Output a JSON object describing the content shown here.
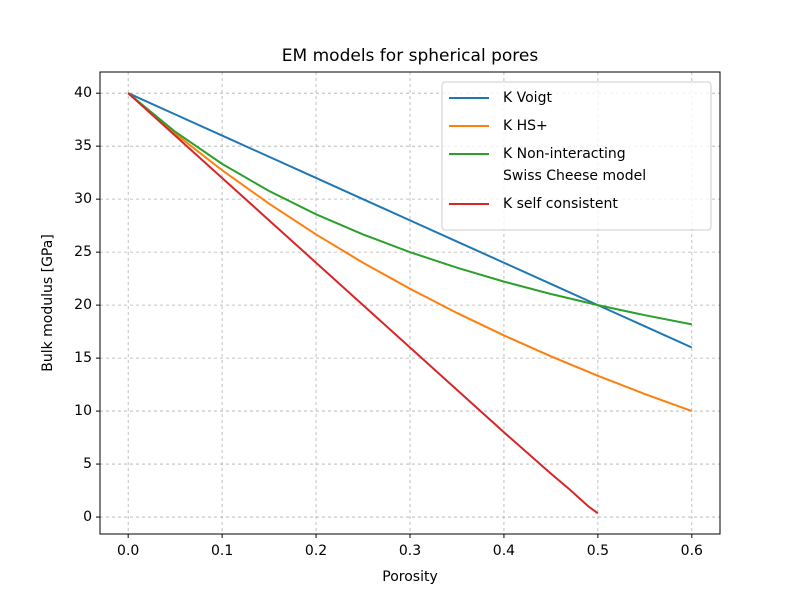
{
  "chart_data": {
    "type": "line",
    "title": "EM models for spherical pores",
    "xlabel": "Porosity",
    "ylabel": "Bulk modulus [GPa]",
    "xlim": [
      -0.03,
      0.63
    ],
    "ylim": [
      -1.6,
      42
    ],
    "xticks": [
      {
        "value": 0,
        "label": "0.0"
      },
      0.1,
      0.2,
      0.3,
      0.4,
      0.5,
      0.6
    ],
    "yticks": [
      0,
      5,
      10,
      15,
      20,
      25,
      30,
      35,
      40
    ],
    "grid": true,
    "legend": "upper right",
    "series": [
      {
        "name": "K Voigt",
        "color": "#1f77b4",
        "x": [
          0,
          0.05,
          0.1,
          0.15,
          0.2,
          0.25,
          0.3,
          0.35,
          0.4,
          0.45,
          0.5,
          0.55,
          0.6
        ],
        "values": [
          40,
          38,
          36,
          34,
          32,
          30,
          28,
          26,
          24,
          22,
          20,
          18,
          16
        ]
      },
      {
        "name": "K HS+",
        "color": "#ff7f0e",
        "x": [
          0,
          0.05,
          0.1,
          0.15,
          0.2,
          0.25,
          0.3,
          0.35,
          0.4,
          0.45,
          0.5,
          0.55,
          0.6
        ],
        "values": [
          40,
          36.19,
          32.73,
          29.57,
          26.67,
          24,
          21.54,
          19.26,
          17.14,
          15.17,
          13.33,
          11.61,
          10
        ]
      },
      {
        "name": "K Non-interacting\nSwiss Cheese model",
        "color": "#2ca02c",
        "x": [
          0,
          0.05,
          0.1,
          0.15,
          0.2,
          0.25,
          0.3,
          0.35,
          0.4,
          0.45,
          0.5,
          0.55,
          0.6
        ],
        "values": [
          40,
          36.36,
          33.33,
          30.77,
          28.57,
          26.67,
          25,
          23.53,
          22.22,
          21.05,
          20,
          19.05,
          18.18
        ]
      },
      {
        "name": "K self consistent",
        "color": "#d62728",
        "x": [
          0,
          0.05,
          0.1,
          0.15,
          0.2,
          0.25,
          0.3,
          0.35,
          0.4,
          0.45,
          0.47,
          0.49,
          0.5
        ],
        "values": [
          40,
          36,
          32,
          28,
          24,
          20,
          16,
          12,
          8,
          4.1,
          2.6,
          1,
          0.35
        ]
      }
    ]
  }
}
